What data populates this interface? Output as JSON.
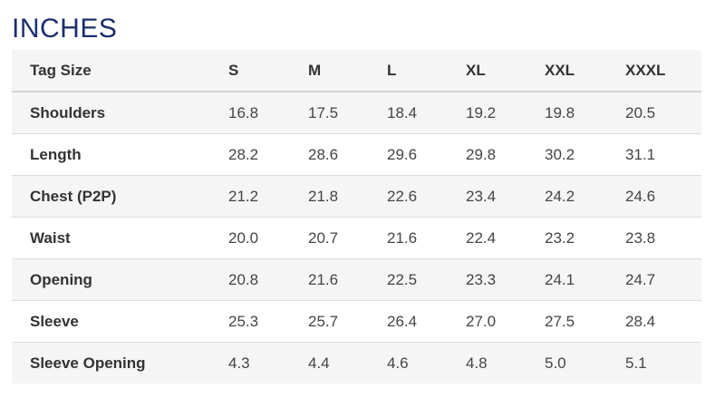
{
  "heading": "INCHES",
  "table": {
    "header_label": "Tag Size",
    "sizes": [
      "S",
      "M",
      "L",
      "XL",
      "XXL",
      "XXXL"
    ],
    "rows": [
      {
        "label": "Shoulders",
        "values": [
          "16.8",
          "17.5",
          "18.4",
          "19.2",
          "19.8",
          "20.5"
        ]
      },
      {
        "label": "Length",
        "values": [
          "28.2",
          "28.6",
          "29.6",
          "29.8",
          "30.2",
          "31.1"
        ]
      },
      {
        "label": "Chest (P2P)",
        "values": [
          "21.2",
          "21.8",
          "22.6",
          "23.4",
          "24.2",
          "24.6"
        ]
      },
      {
        "label": "Waist",
        "values": [
          "20.0",
          "20.7",
          "21.6",
          "22.4",
          "23.2",
          "23.8"
        ]
      },
      {
        "label": "Opening",
        "values": [
          "20.8",
          "21.6",
          "22.5",
          "23.3",
          "24.1",
          "24.7"
        ]
      },
      {
        "label": "Sleeve",
        "values": [
          "25.3",
          "25.7",
          "26.4",
          "27.0",
          "27.5",
          "28.4"
        ]
      },
      {
        "label": "Sleeve Opening",
        "values": [
          "4.3",
          "4.4",
          "4.6",
          "4.8",
          "5.0",
          "5.1"
        ]
      }
    ]
  }
}
